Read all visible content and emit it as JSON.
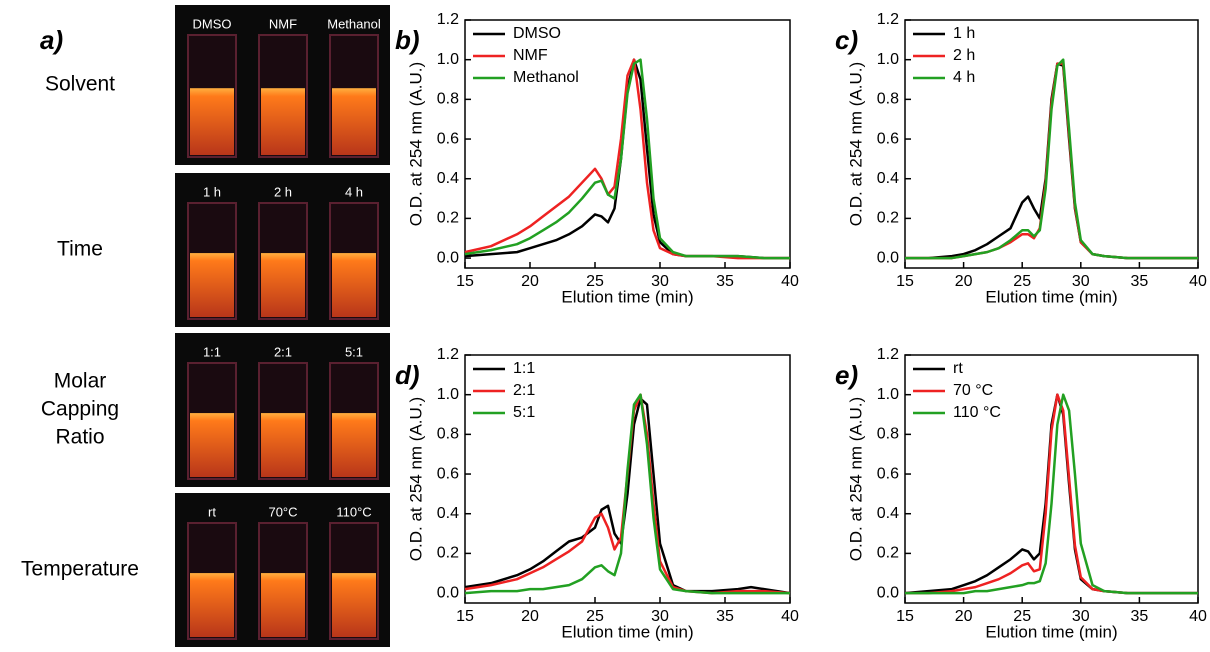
{
  "photo_panel": {
    "label": "a)",
    "rows": [
      {
        "name": [
          "Solvent"
        ],
        "labels": [
          "DMSO",
          "NMF",
          "Methanol"
        ]
      },
      {
        "name": [
          "Time"
        ],
        "labels": [
          "1 h",
          "2 h",
          "4 h"
        ]
      },
      {
        "name": [
          "Molar",
          "Capping",
          "Ratio"
        ],
        "labels": [
          "1:1",
          "2:1",
          "5:1"
        ]
      },
      {
        "name": [
          "Temperature"
        ],
        "labels": [
          "rt",
          "70°C",
          "110°C"
        ]
      }
    ]
  },
  "chart_data": [
    {
      "type": "line",
      "label": "b)",
      "xlabel": "Elution time (min)",
      "ylabel": "O.D. at 254 nm (A.U.)",
      "xlim": [
        15,
        40
      ],
      "ylim": [
        -0.05,
        1.2
      ],
      "xticks": [
        15,
        20,
        25,
        30,
        35,
        40
      ],
      "yticks": [
        {
          "value": 0,
          "label": "0.0"
        },
        0.2,
        0.4,
        0.6,
        0.8,
        {
          "value": 1,
          "label": "1.0"
        },
        1.2
      ],
      "legend": "upper left",
      "x": [
        15,
        17,
        19,
        20,
        21,
        22,
        23,
        24,
        25,
        25.5,
        26,
        26.5,
        27,
        27.5,
        28,
        28.5,
        29,
        29.5,
        30,
        31,
        32,
        34,
        36,
        38,
        40
      ],
      "series": [
        {
          "name": "DMSO",
          "color": "#000000",
          "values": [
            0.01,
            0.02,
            0.03,
            0.05,
            0.07,
            0.09,
            0.12,
            0.16,
            0.22,
            0.21,
            0.18,
            0.25,
            0.5,
            0.85,
            1.0,
            0.9,
            0.55,
            0.22,
            0.08,
            0.02,
            0.01,
            0.01,
            0.01,
            0.0,
            0.0
          ]
        },
        {
          "name": "NMF",
          "color": "#ee2222",
          "values": [
            0.03,
            0.06,
            0.12,
            0.16,
            0.21,
            0.26,
            0.31,
            0.38,
            0.45,
            0.4,
            0.32,
            0.36,
            0.6,
            0.92,
            1.0,
            0.75,
            0.38,
            0.14,
            0.05,
            0.02,
            0.01,
            0.01,
            0.0,
            0.0,
            0.0
          ]
        },
        {
          "name": "Methanol",
          "color": "#22a022",
          "values": [
            0.02,
            0.04,
            0.07,
            0.1,
            0.14,
            0.18,
            0.23,
            0.3,
            0.38,
            0.39,
            0.32,
            0.3,
            0.5,
            0.83,
            0.98,
            1.0,
            0.7,
            0.3,
            0.1,
            0.03,
            0.01,
            0.01,
            0.01,
            0.0,
            0.0
          ]
        }
      ]
    },
    {
      "type": "line",
      "label": "c)",
      "xlabel": "Elution time (min)",
      "ylabel": "O.D. at 254 nm (A.U.)",
      "xlim": [
        15,
        40
      ],
      "ylim": [
        -0.05,
        1.2
      ],
      "xticks": [
        15,
        20,
        25,
        30,
        35,
        40
      ],
      "yticks": [
        {
          "value": 0,
          "label": "0.0"
        },
        0.2,
        0.4,
        0.6,
        0.8,
        {
          "value": 1,
          "label": "1.0"
        },
        1.2
      ],
      "legend": "upper left",
      "x": [
        15,
        17,
        19,
        20,
        21,
        22,
        23,
        24,
        25,
        25.5,
        26,
        26.5,
        27,
        27.5,
        28,
        28.5,
        29,
        29.5,
        30,
        31,
        32,
        34,
        36,
        38,
        40
      ],
      "series": [
        {
          "name": "1 h",
          "color": "#000000",
          "values": [
            0.0,
            0.0,
            0.01,
            0.02,
            0.04,
            0.07,
            0.11,
            0.15,
            0.28,
            0.31,
            0.25,
            0.2,
            0.4,
            0.8,
            0.98,
            0.97,
            0.6,
            0.25,
            0.08,
            0.02,
            0.01,
            0.0,
            0.0,
            0.0,
            0.0
          ]
        },
        {
          "name": "2 h",
          "color": "#ee2222",
          "values": [
            0.0,
            0.0,
            0.0,
            0.01,
            0.02,
            0.03,
            0.05,
            0.08,
            0.12,
            0.12,
            0.1,
            0.15,
            0.38,
            0.78,
            0.98,
            0.98,
            0.62,
            0.26,
            0.08,
            0.02,
            0.01,
            0.0,
            0.0,
            0.0,
            0.0
          ]
        },
        {
          "name": "4 h",
          "color": "#22a022",
          "values": [
            0.0,
            0.0,
            0.0,
            0.01,
            0.02,
            0.03,
            0.05,
            0.09,
            0.14,
            0.14,
            0.11,
            0.14,
            0.35,
            0.75,
            0.97,
            1.0,
            0.65,
            0.28,
            0.09,
            0.02,
            0.01,
            0.0,
            0.0,
            0.0,
            0.0
          ]
        }
      ]
    },
    {
      "type": "line",
      "label": "d)",
      "xlabel": "Elution time (min)",
      "ylabel": "O.D. at 254 nm (A.U.)",
      "xlim": [
        15,
        40
      ],
      "ylim": [
        -0.05,
        1.2
      ],
      "xticks": [
        15,
        20,
        25,
        30,
        35,
        40
      ],
      "yticks": [
        {
          "value": 0,
          "label": "0.0"
        },
        0.2,
        0.4,
        0.6,
        0.8,
        {
          "value": 1,
          "label": "1.0"
        },
        1.2
      ],
      "legend": "upper left",
      "x": [
        15,
        17,
        19,
        20,
        21,
        22,
        23,
        24,
        25,
        25.5,
        26,
        26.5,
        27,
        27.5,
        28,
        28.5,
        29,
        29.5,
        30,
        31,
        32,
        34,
        36,
        37,
        38,
        40
      ],
      "series": [
        {
          "name": "1:1",
          "color": "#000000",
          "values": [
            0.03,
            0.05,
            0.09,
            0.12,
            0.16,
            0.21,
            0.26,
            0.28,
            0.33,
            0.42,
            0.44,
            0.3,
            0.25,
            0.5,
            0.85,
            0.98,
            0.95,
            0.6,
            0.25,
            0.04,
            0.01,
            0.01,
            0.02,
            0.03,
            0.02,
            0.0
          ]
        },
        {
          "name": "2:1",
          "color": "#ee2222",
          "values": [
            0.02,
            0.04,
            0.07,
            0.1,
            0.13,
            0.17,
            0.21,
            0.26,
            0.38,
            0.4,
            0.33,
            0.22,
            0.28,
            0.6,
            0.92,
            1.0,
            0.8,
            0.45,
            0.16,
            0.03,
            0.01,
            0.0,
            0.01,
            0.01,
            0.01,
            0.0
          ]
        },
        {
          "name": "5:1",
          "color": "#22a022",
          "values": [
            0.0,
            0.01,
            0.01,
            0.02,
            0.02,
            0.03,
            0.04,
            0.07,
            0.13,
            0.14,
            0.11,
            0.09,
            0.2,
            0.62,
            0.95,
            1.0,
            0.75,
            0.38,
            0.12,
            0.02,
            0.01,
            0.0,
            0.0,
            0.0,
            0.0,
            0.0
          ]
        }
      ]
    },
    {
      "type": "line",
      "label": "e)",
      "xlabel": "Elution time (min)",
      "ylabel": "O.D. at 254 nm (A.U.)",
      "xlim": [
        15,
        40
      ],
      "ylim": [
        -0.05,
        1.2
      ],
      "xticks": [
        15,
        20,
        25,
        30,
        35,
        40
      ],
      "yticks": [
        {
          "value": 0,
          "label": "0.0"
        },
        0.2,
        0.4,
        0.6,
        0.8,
        {
          "value": 1,
          "label": "1.0"
        },
        1.2
      ],
      "legend": "upper left",
      "x": [
        15,
        17,
        19,
        20,
        21,
        22,
        23,
        24,
        25,
        25.5,
        26,
        26.5,
        27,
        27.5,
        28,
        28.5,
        29,
        29.5,
        30,
        31,
        32,
        34,
        36,
        38,
        40
      ],
      "series": [
        {
          "name": "rt",
          "color": "#000000",
          "values": [
            0.0,
            0.01,
            0.02,
            0.04,
            0.06,
            0.09,
            0.13,
            0.17,
            0.22,
            0.21,
            0.17,
            0.2,
            0.45,
            0.85,
            1.0,
            0.9,
            0.55,
            0.22,
            0.07,
            0.02,
            0.01,
            0.0,
            0.0,
            0.0,
            0.0
          ]
        },
        {
          "name": "70 °C",
          "color": "#ee2222",
          "values": [
            0.0,
            0.0,
            0.01,
            0.02,
            0.03,
            0.05,
            0.07,
            0.1,
            0.14,
            0.15,
            0.11,
            0.12,
            0.4,
            0.82,
            1.0,
            0.92,
            0.58,
            0.24,
            0.08,
            0.02,
            0.01,
            0.0,
            0.0,
            0.0,
            0.0
          ]
        },
        {
          "name": "110 °C",
          "color": "#22a022",
          "values": [
            0.0,
            0.0,
            0.0,
            0.0,
            0.01,
            0.01,
            0.02,
            0.03,
            0.04,
            0.05,
            0.05,
            0.06,
            0.15,
            0.45,
            0.85,
            1.0,
            0.92,
            0.6,
            0.25,
            0.04,
            0.01,
            0.0,
            0.0,
            0.0,
            0.0
          ]
        }
      ]
    }
  ]
}
